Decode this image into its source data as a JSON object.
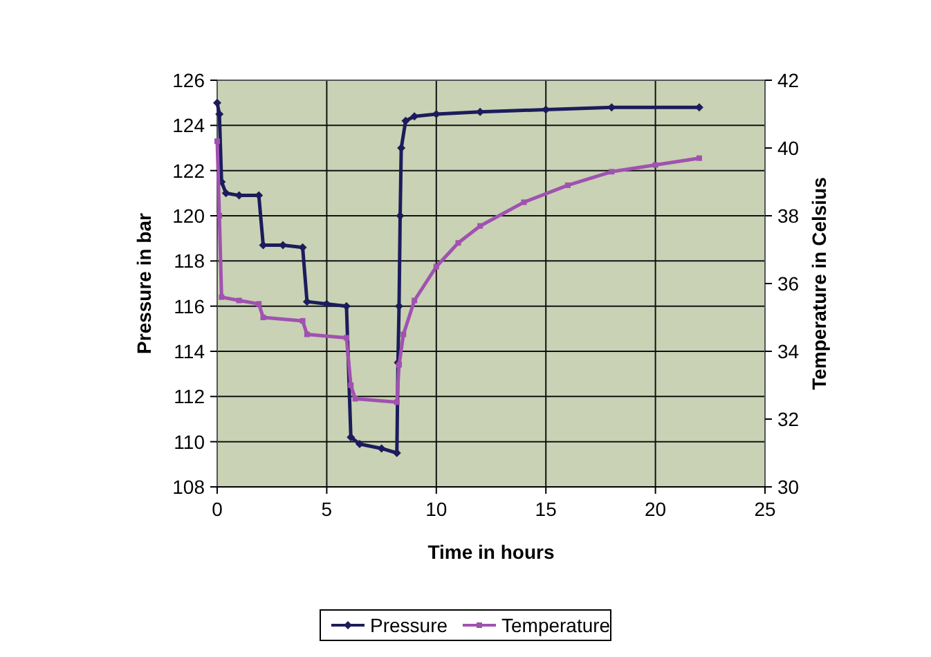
{
  "chart_data": {
    "type": "line",
    "xlabel": "Time in hours",
    "ylabel": "Pressure in bar",
    "y2label": "Temperature in Celsius",
    "xlim": [
      0,
      25
    ],
    "xticks": [
      0,
      5,
      10,
      15,
      20,
      25
    ],
    "ylim": [
      108,
      126
    ],
    "yticks": [
      108,
      110,
      112,
      114,
      116,
      118,
      120,
      122,
      124,
      126
    ],
    "y2lim": [
      30,
      42
    ],
    "y2ticks": [
      30,
      32,
      34,
      36,
      38,
      40,
      42
    ],
    "grid": true,
    "legend": "bottom",
    "series": [
      {
        "name": "Pressure",
        "color": "#1c1c5c",
        "marker": "diamond",
        "x": [
          0,
          0.1,
          0.2,
          0.4,
          1,
          1.9,
          2.1,
          3,
          3.9,
          4.1,
          5,
          5.9,
          6.1,
          6.5,
          7.5,
          8.2,
          8.25,
          8.3,
          8.35,
          8.4,
          8.6,
          9,
          10,
          12,
          15,
          18,
          22
        ],
        "values": [
          125,
          124.5,
          121.5,
          121,
          120.9,
          120.9,
          118.7,
          118.7,
          118.6,
          116.2,
          116.1,
          116,
          110.2,
          109.9,
          109.7,
          109.5,
          113.5,
          116,
          120,
          123,
          124.2,
          124.4,
          124.5,
          124.6,
          124.7,
          124.8,
          124.8
        ]
      },
      {
        "name": "Temperature",
        "color": "#a052b0",
        "marker": "square",
        "axis": "y2",
        "x": [
          0,
          0.1,
          0.2,
          1,
          1.9,
          2.1,
          3.9,
          4.1,
          5.9,
          6.1,
          6.3,
          8.2,
          8.3,
          8.5,
          9,
          10,
          11,
          12,
          14,
          16,
          18,
          20,
          22
        ],
        "values": [
          40.2,
          38,
          35.6,
          35.5,
          35.4,
          35,
          34.9,
          34.5,
          34.4,
          33,
          32.6,
          32.5,
          33.6,
          34.5,
          35.5,
          36.5,
          37.2,
          37.7,
          38.4,
          38.9,
          39.3,
          39.5,
          39.7
        ]
      }
    ]
  }
}
